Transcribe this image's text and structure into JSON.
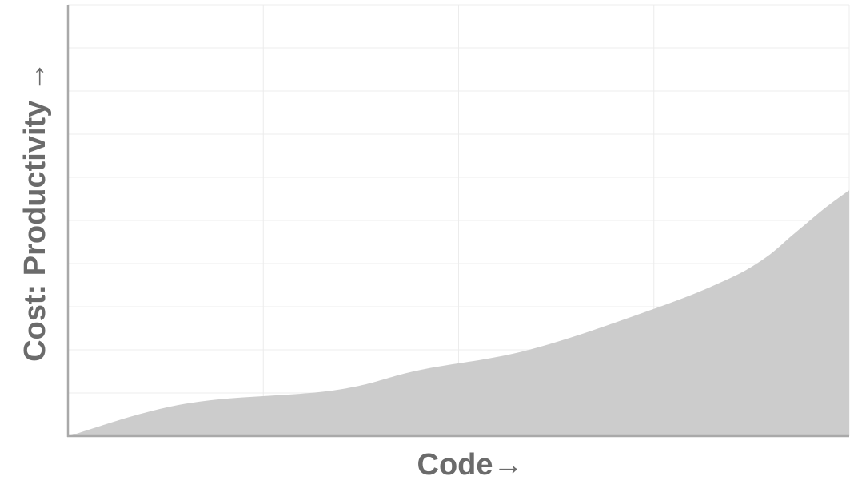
{
  "chart_data": {
    "type": "area",
    "title": "",
    "xlabel": "Code→",
    "ylabel": "Cost: Productivity →",
    "xlim": [
      0,
      100
    ],
    "ylim": [
      0,
      100
    ],
    "grid": true,
    "x_grid_count": 4,
    "y_grid_count": 10,
    "colors": {
      "area": "#cccccc",
      "axis": "#a9a9a9",
      "grid": "#ececec",
      "label": "#6b6b6b"
    },
    "series": [
      {
        "x": [
          0,
          15,
          34,
          45,
          59,
          75,
          84,
          89,
          93,
          97,
          100
        ],
        "values": [
          0,
          7.5,
          10.6,
          15.3,
          20,
          29.5,
          36,
          41,
          47,
          53,
          57
        ]
      }
    ]
  }
}
